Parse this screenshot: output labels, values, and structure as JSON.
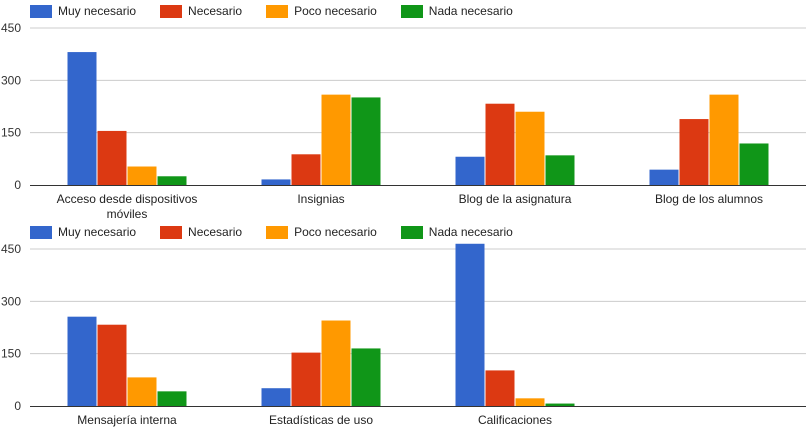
{
  "colors": {
    "Muy necesario": "#3366cc",
    "Necesario": "#dc3912",
    "Poco necesario": "#ff9900",
    "Nada necesario": "#109618"
  },
  "chart_data": [
    {
      "type": "bar",
      "legend_position": "top-left",
      "grid": true,
      "ylim": [
        0,
        450
      ],
      "yticks": [
        0,
        150,
        300,
        450
      ],
      "categories": [
        [
          "Acceso desde dispositivos",
          "móviles"
        ],
        [
          "Insignias"
        ],
        [
          "Blog de la asignatura"
        ],
        [
          "Blog de los alumnos"
        ]
      ],
      "series": [
        {
          "name": "Muy necesario",
          "values": [
            381,
            16,
            81,
            44
          ]
        },
        {
          "name": "Necesario",
          "values": [
            155,
            88,
            233,
            189
          ]
        },
        {
          "name": "Poco necesario",
          "values": [
            53,
            259,
            210,
            259
          ]
        },
        {
          "name": "Nada necesario",
          "values": [
            25,
            251,
            85,
            119
          ]
        }
      ]
    },
    {
      "type": "bar",
      "legend_position": "top-left",
      "grid": true,
      "ylim": [
        0,
        450
      ],
      "yticks": [
        0,
        150,
        300,
        450
      ],
      "slots": 4,
      "categories": [
        [
          "Mensajería interna"
        ],
        [
          "Estadísticas de uso"
        ],
        [
          "Calificaciones"
        ]
      ],
      "series": [
        {
          "name": "Muy necesario",
          "values": [
            256,
            51,
            465
          ]
        },
        {
          "name": "Necesario",
          "values": [
            233,
            153,
            102
          ]
        },
        {
          "name": "Poco necesario",
          "values": [
            82,
            245,
            22
          ]
        },
        {
          "name": "Nada necesario",
          "values": [
            42,
            165,
            7
          ]
        }
      ]
    }
  ]
}
